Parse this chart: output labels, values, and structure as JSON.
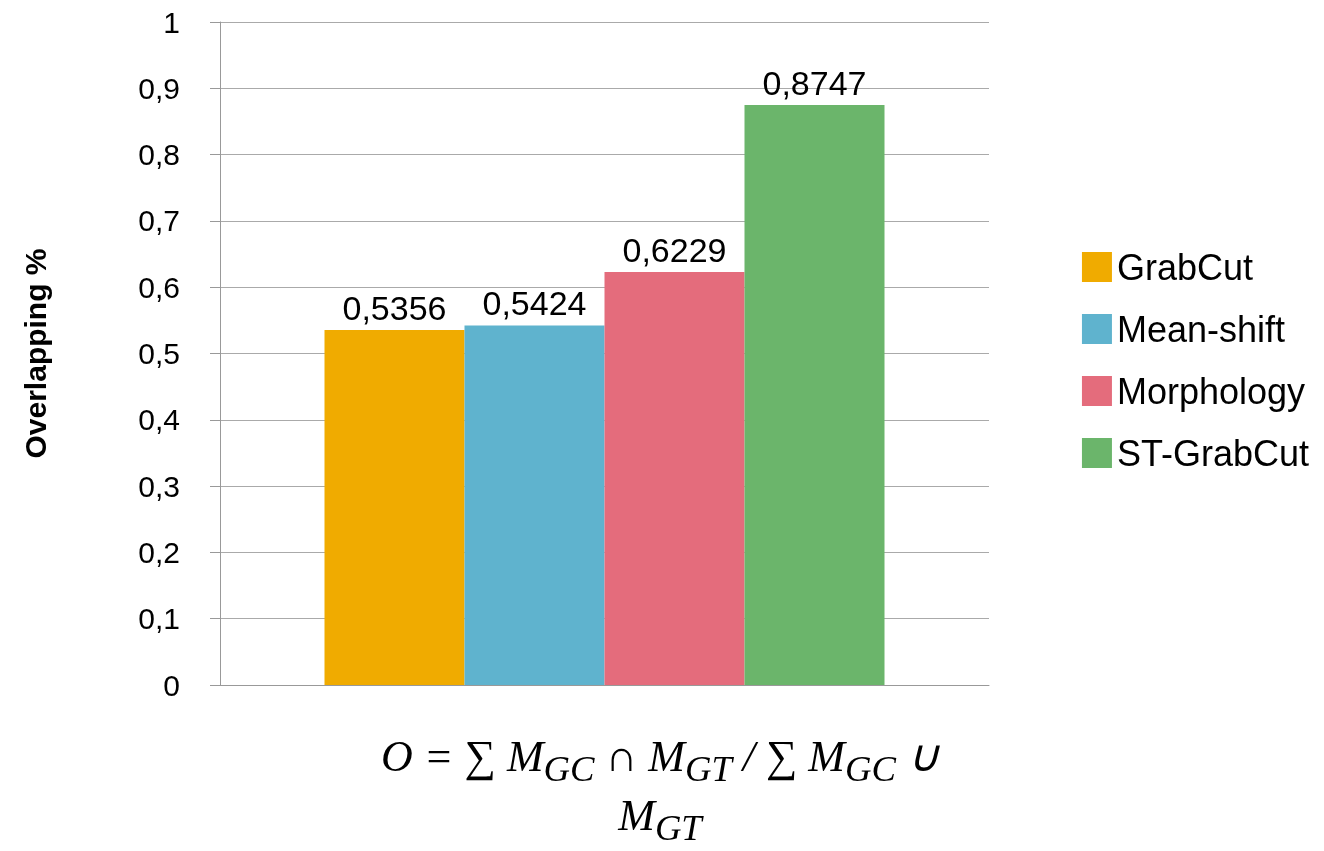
{
  "chart_data": {
    "type": "bar",
    "ylabel": "Overlapping %",
    "categories": [
      null
    ],
    "series": [
      {
        "name": "GrabCut",
        "color": "#f0ab00",
        "values": [
          0.5356
        ],
        "value_labels": [
          "0,5356"
        ]
      },
      {
        "name": "Mean-shift",
        "color": "#5fb3ce",
        "values": [
          0.5424
        ],
        "value_labels": [
          "0,5424"
        ]
      },
      {
        "name": "Morphology",
        "color": "#e46c7c",
        "values": [
          0.6229
        ],
        "value_labels": [
          "0,6229"
        ]
      },
      {
        "name": "ST-GrabCut",
        "color": "#6bb56b",
        "values": [
          0.8747
        ],
        "value_labels": [
          "0,8747"
        ]
      }
    ],
    "ylim": [
      0,
      1
    ],
    "yticks": [
      0,
      {
        "value": 0.1,
        "label": "0,1"
      },
      {
        "value": 0.2,
        "label": "0,2"
      },
      {
        "value": 0.3,
        "label": "0,3"
      },
      {
        "value": 0.4,
        "label": "0,4"
      },
      {
        "value": 0.5,
        "label": "0,5"
      },
      {
        "value": 0.6,
        "label": "0,6"
      },
      {
        "value": 0.7,
        "label": "0,7"
      },
      {
        "value": 0.8,
        "label": "0,8"
      },
      {
        "value": 0.9,
        "label": "0,9"
      },
      1
    ],
    "grid": "y",
    "legend": "right",
    "annotations": [
      "O = ∑ M$_{GC}$ ∩ M$_{GT}$ / ∑ M$_{GC}$ ∪ M$_{GT}$"
    ]
  }
}
